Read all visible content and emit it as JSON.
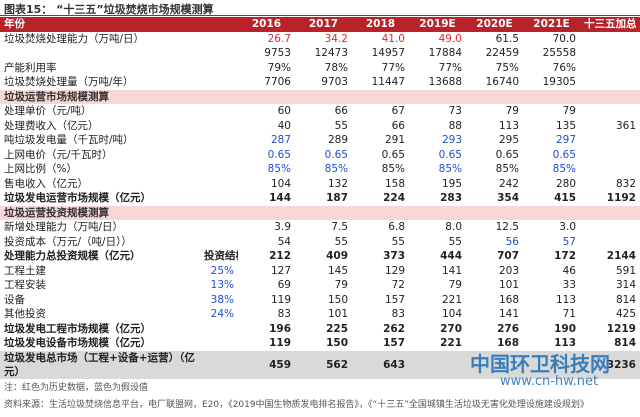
{
  "title": "图表15：  “十三五”垃圾焚烧市场规模测算",
  "table": {
    "header": [
      "年份",
      null,
      "2016",
      "2017",
      "2018",
      "2019E",
      "2020E",
      "2021E",
      "十三五加总"
    ],
    "rows": [
      {
        "cells": [
          "垃圾焚烧处理能力（万吨/日）",
          null,
          {
            "text": "26.7",
            "color": "#e8262a"
          },
          {
            "text": "34.2",
            "color": "#e8262a"
          },
          {
            "text": "41.0",
            "color": "#e8262a"
          },
          {
            "text": "49.0",
            "color": "#e8262a"
          },
          "61.5",
          "70.0",
          null
        ]
      },
      {
        "cells": [
          null,
          null,
          "9753",
          "12473",
          "14957",
          "17884",
          "22459",
          "25558",
          null
        ]
      },
      {
        "cells": [
          "产能利用率",
          null,
          "79%",
          "78%",
          "77%",
          "77%",
          "75%",
          "76%",
          null
        ]
      },
      {
        "cells": [
          "垃圾焚烧处理量（万吨/年）",
          null,
          "7706",
          "9703",
          "11447",
          "13688",
          "16740",
          "19305",
          null
        ]
      },
      {
        "section": "垃圾运营市场规模测算"
      },
      {
        "cells": [
          "处理单价（元/吨）",
          null,
          "60",
          "66",
          "67",
          "73",
          "79",
          "79",
          null
        ]
      },
      {
        "cells": [
          "处理费收入（亿元）",
          null,
          "40",
          "55",
          "66",
          "88",
          "113",
          "135",
          "361"
        ]
      },
      {
        "cells": [
          "吨垃圾发电量（千瓦时/吨）",
          null,
          {
            "text": "287",
            "color": "#1f4fd6"
          },
          "289",
          "291",
          {
            "text": "293",
            "color": "#1f4fd6"
          },
          "295",
          {
            "text": "297",
            "color": "#1f4fd6"
          },
          null
        ]
      },
      {
        "cells": [
          "上网电价（元/千瓦时）",
          null,
          {
            "text": "0.65",
            "color": "#1f4fd6"
          },
          {
            "text": "0.65",
            "color": "#1f4fd6"
          },
          "0.65",
          {
            "text": "0.65",
            "color": "#1f4fd6"
          },
          "0.65",
          {
            "text": "0.65",
            "color": "#1f4fd6"
          },
          null
        ]
      },
      {
        "cells": [
          "上网比例（%）",
          null,
          {
            "text": "85%",
            "color": "#1f4fd6"
          },
          {
            "text": "85%",
            "color": "#1f4fd6"
          },
          "85%",
          {
            "text": "85%",
            "color": "#1f4fd6"
          },
          "85%",
          {
            "text": "85%",
            "color": "#1f4fd6"
          },
          null
        ]
      },
      {
        "cells": [
          "售电收入（亿元）",
          null,
          "104",
          "132",
          "158",
          "195",
          "242",
          "280",
          "832"
        ]
      },
      {
        "bold": true,
        "cells": [
          "垃圾发电运营市场规模（亿元）",
          null,
          "144",
          "187",
          "224",
          "283",
          "354",
          "415",
          "1192"
        ]
      },
      {
        "section": "垃圾运营投资规模测算"
      },
      {
        "cells": [
          "新增处理能力（万吨/日）",
          null,
          "3.9",
          "7.5",
          "6.8",
          "8.0",
          "12.5",
          "3.0",
          null
        ]
      },
      {
        "cells": [
          "投资成本（万元/（吨/日））",
          null,
          "54",
          "55",
          "55",
          "55",
          {
            "text": "56",
            "color": "#1f4fd6"
          },
          {
            "text": "57",
            "color": "#1f4fd6"
          },
          null
        ]
      },
      {
        "bold": true,
        "cells": [
          "处理能力总投资规模（亿元）",
          "投资结构",
          "212",
          "409",
          "373",
          "444",
          "707",
          "172",
          "2144"
        ]
      },
      {
        "cells": [
          "工程土建",
          {
            "text": "25%",
            "color": "#1f4fd6"
          },
          "127",
          "145",
          "129",
          "141",
          "203",
          "46",
          "591"
        ]
      },
      {
        "cells": [
          "工程安装",
          {
            "text": "13%",
            "color": "#1f4fd6"
          },
          "69",
          "79",
          "72",
          "79",
          "101",
          "33",
          "314"
        ]
      },
      {
        "cells": [
          "设备",
          {
            "text": "38%",
            "color": "#1f4fd6"
          },
          "119",
          "150",
          "157",
          "221",
          "168",
          "113",
          "814"
        ]
      },
      {
        "cells": [
          "其他投资",
          {
            "text": "24%",
            "color": "#1f4fd6"
          },
          "83",
          "101",
          "83",
          "104",
          "141",
          "71",
          "425"
        ]
      },
      {
        "bold": true,
        "cells": [
          "垃圾发电工程市场规模（亿元）",
          null,
          "196",
          "225",
          "262",
          "270",
          "276",
          "190",
          "1219"
        ]
      },
      {
        "bold": true,
        "cells": [
          "垃圾发电设备市场规模（亿元）",
          null,
          "119",
          "150",
          "157",
          "221",
          "168",
          "113",
          "814"
        ]
      },
      {
        "bold": true,
        "total": true,
        "cells": [
          "垃圾发电总市场（工程+设备+运营）（亿元）",
          null,
          "459",
          "562",
          "643",
          null,
          null,
          null,
          "3236"
        ]
      }
    ]
  },
  "note": "注：红色为历史数据，蓝色为假设值",
  "source": "资料来源：生活垃圾焚烧信息平台，电厂联盟网，E20，《2019中国生物质发电排名报告》，《“十三五”全国城镇生活垃圾无害化处理设施建设规划》",
  "watermark": {
    "name": "中国环卫科技网",
    "url": "www.cn-hw.net"
  }
}
